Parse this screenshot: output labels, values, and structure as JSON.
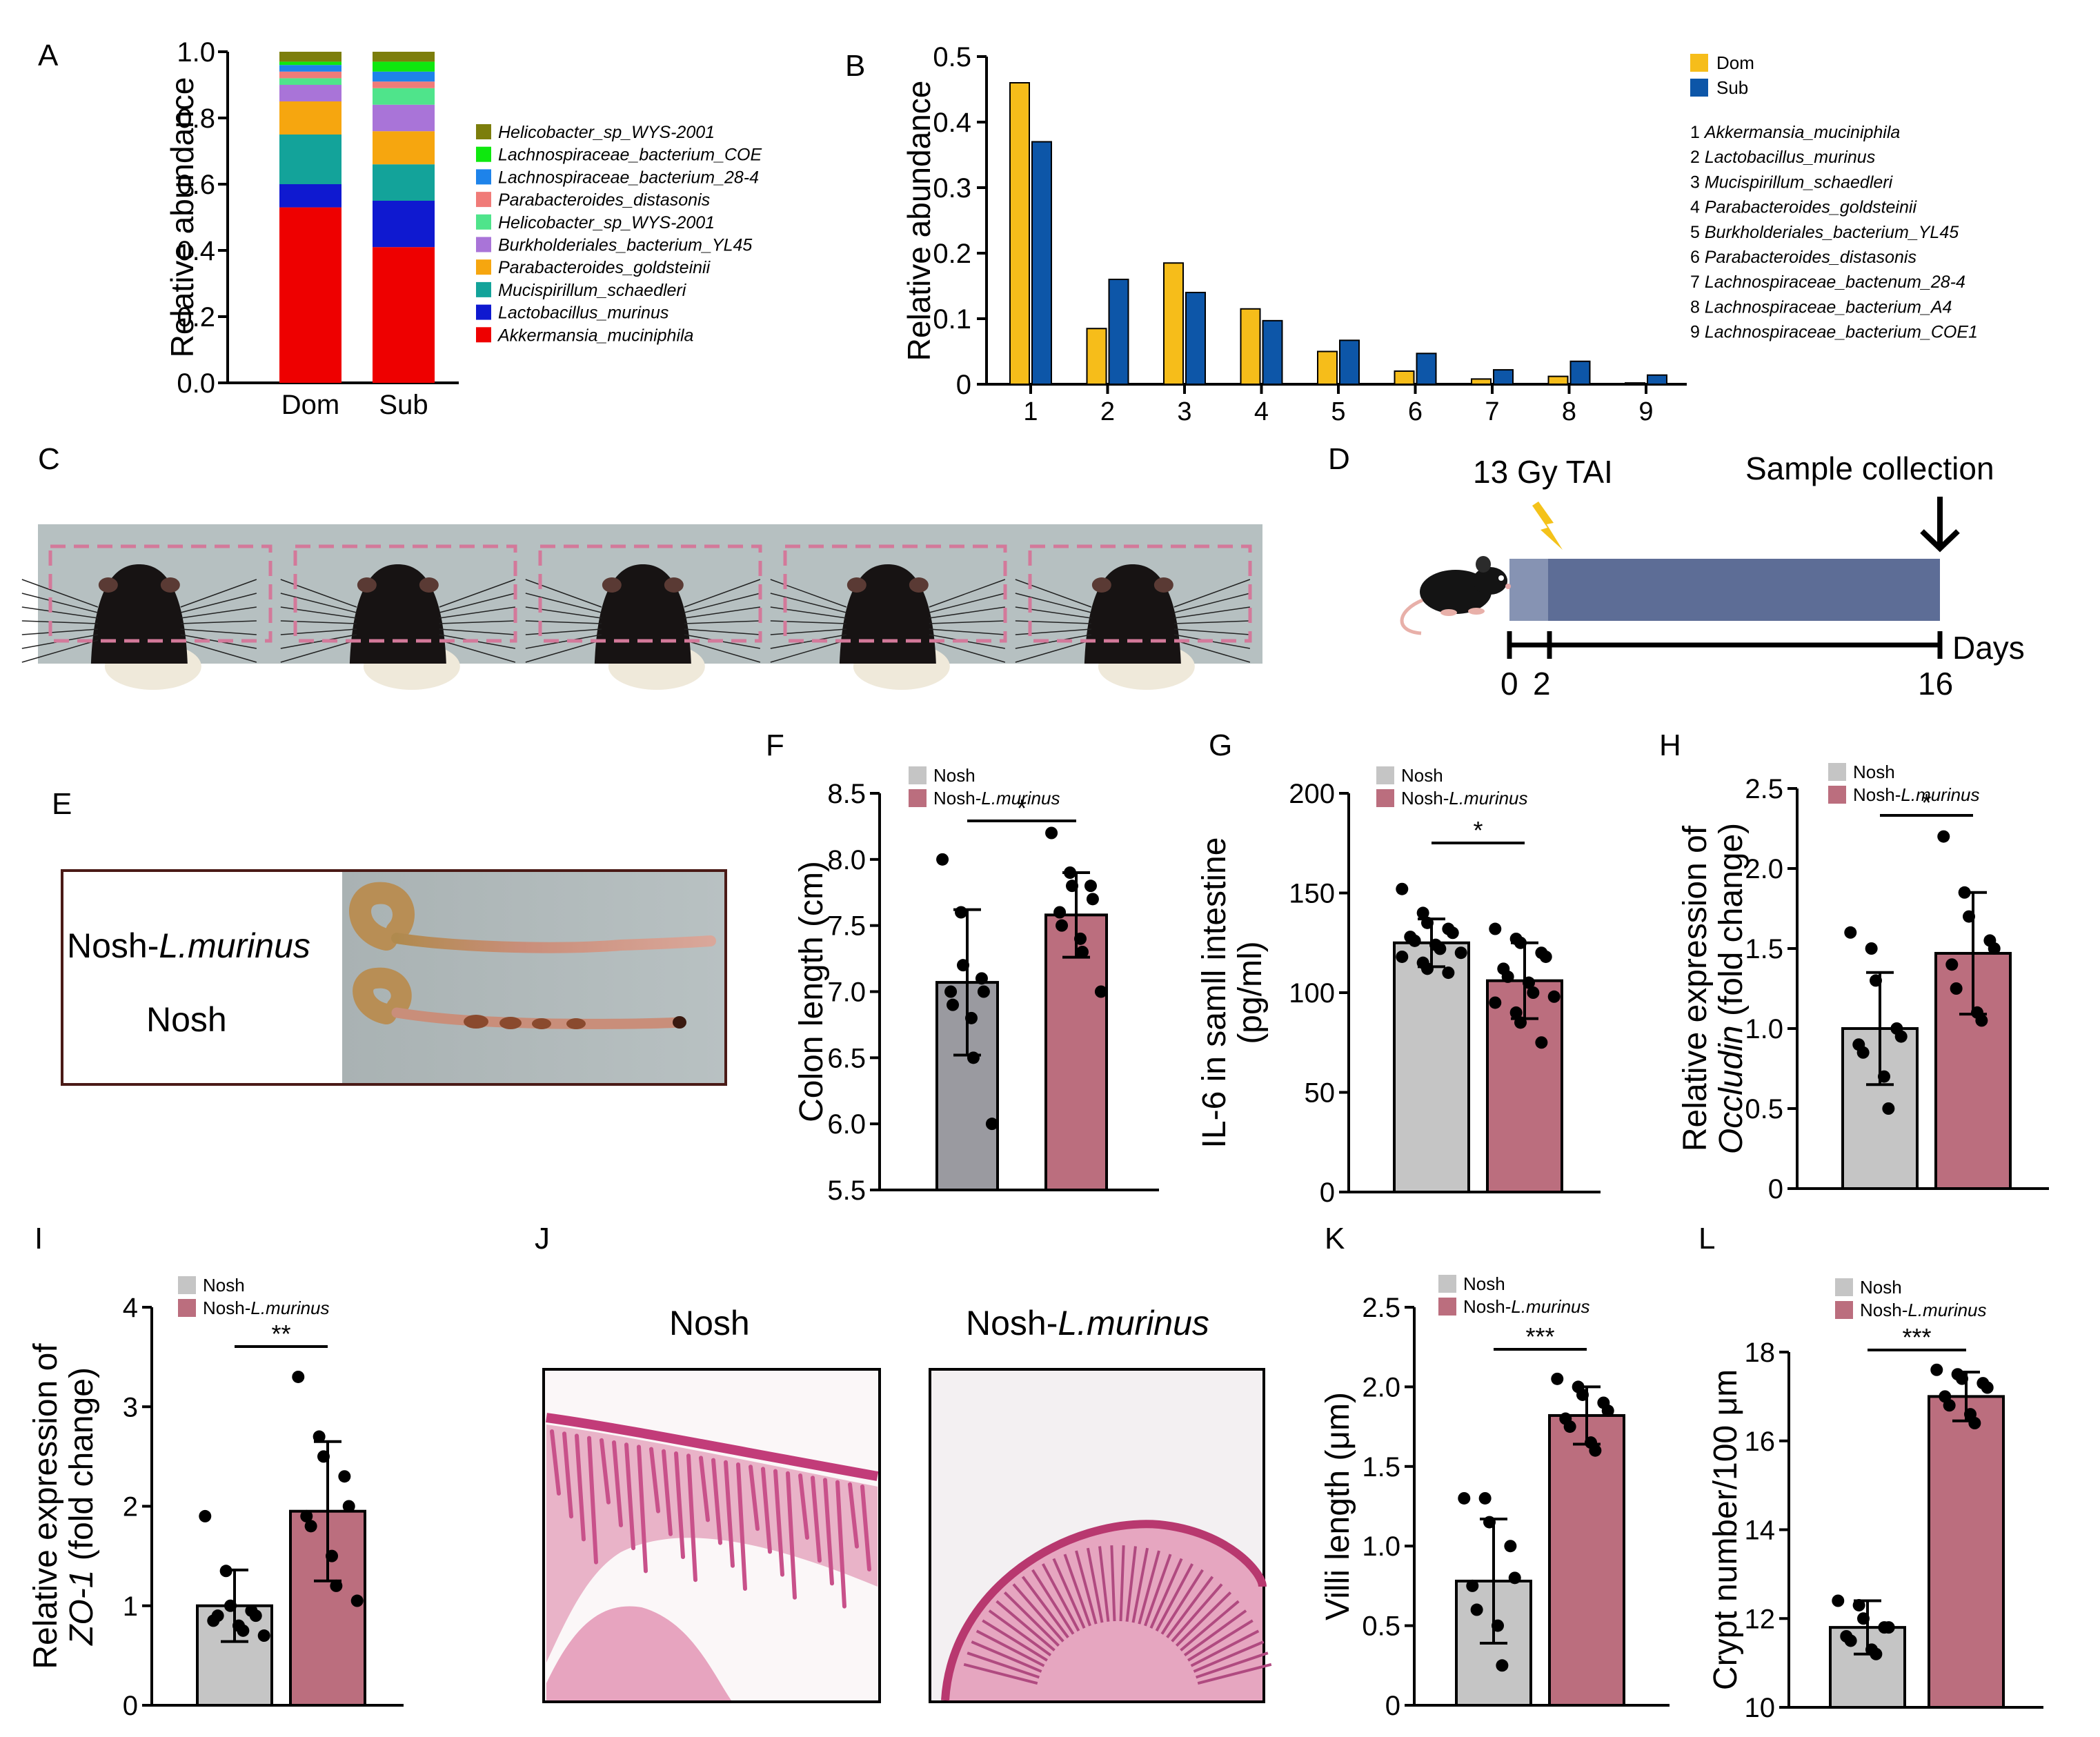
{
  "panel_letters": [
    "A",
    "B",
    "C",
    "D",
    "E",
    "F",
    "G",
    "H",
    "I",
    "J",
    "K",
    "L"
  ],
  "colors": {
    "akk": "#ee0000",
    "lacto": "#0f19d0",
    "muci": "#13a39a",
    "pgold": "#f6a60f",
    "burk": "#a974d8",
    "heli": "#4fe48b",
    "pdis": "#f07b78",
    "l28": "#1e83ea",
    "coe": "#0ee80e",
    "heli2": "#7c7e0c",
    "dom": "#f6bd1a",
    "sub": "#0d56a8",
    "nosh": "#c5c5c5",
    "nosh_lm": "#bb6e7e",
    "nosh_dark": "#9a9aa0",
    "timeline_light": "#8693b3",
    "timeline_dark": "#5d6d96",
    "bolt": "#f4c21a"
  },
  "chart_data": [
    {
      "id": "A",
      "type": "bar",
      "stacked": true,
      "ylabel": "Relative abundance",
      "ylim": [
        0,
        1.0
      ],
      "yticks": [
        "0.0",
        "0.2",
        "0.4",
        "0.6",
        "0.8",
        "1.0"
      ],
      "categories": [
        "Dom",
        "Sub"
      ],
      "series": [
        {
          "name": "Akkermansia_muciniphila",
          "color_key": "akk",
          "values": [
            0.53,
            0.41
          ]
        },
        {
          "name": "Lactobacillus_murinus",
          "color_key": "lacto",
          "values": [
            0.07,
            0.14
          ]
        },
        {
          "name": "Mucispirillum_schaedleri",
          "color_key": "muci",
          "values": [
            0.15,
            0.11
          ]
        },
        {
          "name": "Parabacteroides_goldsteinii",
          "color_key": "pgold",
          "values": [
            0.1,
            0.1
          ]
        },
        {
          "name": "Burkholderiales_bacterium_YL45",
          "color_key": "burk",
          "values": [
            0.05,
            0.08
          ]
        },
        {
          "name": "Helicobacter_sp_WYS-2001",
          "color_key": "heli",
          "values": [
            0.02,
            0.05
          ]
        },
        {
          "name": "Parabacteroides_distasonis",
          "color_key": "pdis",
          "values": [
            0.02,
            0.02
          ]
        },
        {
          "name": "Lachnospiraceae_bacterium_28-4",
          "color_key": "l28",
          "values": [
            0.02,
            0.03
          ]
        },
        {
          "name": "Lachnospiraceae_bacterium_COE1",
          "color_key": "coe",
          "values": [
            0.01,
            0.03
          ]
        },
        {
          "name": "Helicobacter_sp_WYS-2001",
          "color_key": "heli2",
          "values": [
            0.03,
            0.03
          ]
        }
      ],
      "legend_labels": [
        "Helicobacter_sp_WYS-2001",
        "Lachnospiraceae_bacterium_COE",
        "Lachnospiraceae_bacterium_28-4",
        "Parabacteroides_distasonis",
        "Helicobacter_sp_WYS-2001",
        "Burkholderiales_bacterium_YL45",
        "Parabacteroides_goldsteinii",
        "Mucispirillum_schaedleri",
        "Lactobacillus_murinus",
        "Akkermansia_muciniphila"
      ],
      "legend_color_keys": [
        "heli2",
        "coe",
        "l28",
        "pdis",
        "heli",
        "burk",
        "pgold",
        "muci",
        "lacto",
        "akk"
      ]
    },
    {
      "id": "B",
      "type": "bar",
      "ylabel": "Relative abundance",
      "ylim": [
        0,
        0.5
      ],
      "yticks": [
        "0",
        "0.1",
        "0.2",
        "0.3",
        "0.4",
        "0.5"
      ],
      "categories": [
        "1",
        "2",
        "3",
        "4",
        "5",
        "6",
        "7",
        "8",
        "9"
      ],
      "series": [
        {
          "name": "Dom",
          "color_key": "dom",
          "values": [
            0.46,
            0.085,
            0.185,
            0.115,
            0.05,
            0.02,
            0.008,
            0.012,
            0.002
          ]
        },
        {
          "name": "Sub",
          "color_key": "sub",
          "values": [
            0.37,
            0.16,
            0.14,
            0.097,
            0.067,
            0.047,
            0.022,
            0.035,
            0.014
          ]
        }
      ],
      "species_list": [
        "1 Akkermansia_muciniphila",
        "2 Lactobacillus_murinus",
        "3 Mucispirillum_schaedleri",
        "4 Parabacteroides_goldsteinii",
        "5 Burkholderiales_bacterium_YL45",
        "6 Parabacteroides_distasonis",
        "7 Lachnospiraceae_bactenum_28-4",
        "8 Lachnospiraceae_bacterium_A4",
        "9 Lachnospiraceae_bacterium_COE1"
      ]
    },
    {
      "id": "F",
      "type": "bar",
      "ylabel": "Colon length (cm)",
      "ylim": [
        5.5,
        8.5
      ],
      "yticks": [
        "5.5",
        "6.0",
        "6.5",
        "7.0",
        "7.5",
        "8.0",
        "8.5"
      ],
      "legend": [
        "Nosh",
        "Nosh-L.murinus"
      ],
      "sig": "*",
      "groups": [
        {
          "name": "Nosh",
          "color_key": "nosh_dark",
          "mean": 7.07,
          "sd": 0.55,
          "points": [
            8.0,
            7.6,
            7.2,
            7.1,
            7.0,
            7.0,
            6.9,
            6.8,
            6.5,
            6.0
          ]
        },
        {
          "name": "Nosh-L.murinus",
          "color_key": "nosh_lm",
          "mean": 7.58,
          "sd": 0.32,
          "points": [
            8.2,
            7.9,
            7.8,
            7.8,
            7.7,
            7.6,
            7.5,
            7.4,
            7.3,
            7.0
          ]
        }
      ]
    },
    {
      "id": "G",
      "type": "bar",
      "ylabel_lines": [
        "IL-6 in samll intestine",
        "(pg/ml)"
      ],
      "ylim": [
        0,
        200
      ],
      "yticks": [
        "0",
        "50",
        "100",
        "150",
        "200"
      ],
      "legend": [
        "Nosh",
        "Nosh-L.murinus"
      ],
      "sig": "*",
      "groups": [
        {
          "name": "Nosh",
          "color_key": "nosh",
          "mean": 125,
          "sd": 12,
          "points": [
            152,
            140,
            135,
            132,
            130,
            128,
            126,
            124,
            122,
            120,
            118,
            115,
            112,
            110
          ]
        },
        {
          "name": "Nosh-L.murinus",
          "color_key": "nosh_lm",
          "mean": 106,
          "sd": 19,
          "points": [
            132,
            127,
            125,
            120,
            118,
            112,
            108,
            105,
            100,
            98,
            95,
            90,
            85,
            75
          ]
        }
      ]
    },
    {
      "id": "H",
      "type": "bar",
      "ylabel_lines": [
        "Relative expression of",
        "Occludin (fold change)"
      ],
      "ylim": [
        0,
        2.5
      ],
      "yticks": [
        "0",
        "0.5",
        "1.0",
        "1.5",
        "2.0",
        "2.5"
      ],
      "legend": [
        "Nosh",
        "Nosh-L.murinus"
      ],
      "sig": "*",
      "groups": [
        {
          "name": "Nosh",
          "color_key": "nosh",
          "mean": 1.0,
          "sd": 0.35,
          "points": [
            1.6,
            1.5,
            1.3,
            1.0,
            0.95,
            0.9,
            0.85,
            0.7,
            0.5
          ]
        },
        {
          "name": "Nosh-L.murinus",
          "color_key": "nosh_lm",
          "mean": 1.47,
          "sd": 0.38,
          "points": [
            2.2,
            1.85,
            1.7,
            1.55,
            1.5,
            1.4,
            1.25,
            1.1,
            1.05
          ]
        }
      ]
    },
    {
      "id": "I",
      "type": "bar",
      "ylabel_lines": [
        "Relative expression of",
        "ZO-1 (fold change)"
      ],
      "ylim": [
        0,
        4
      ],
      "yticks": [
        "0",
        "1",
        "2",
        "3",
        "4"
      ],
      "legend": [
        "Nosh",
        "Nosh-L.murinus"
      ],
      "sig": "**",
      "groups": [
        {
          "name": "Nosh",
          "color_key": "nosh",
          "mean": 1.0,
          "sd": 0.36,
          "points": [
            1.9,
            1.35,
            1.0,
            0.95,
            0.9,
            0.85,
            0.9,
            0.8,
            0.75,
            0.7
          ]
        },
        {
          "name": "Nosh-L.murinus",
          "color_key": "nosh_lm",
          "mean": 1.95,
          "sd": 0.7,
          "points": [
            3.3,
            2.7,
            2.5,
            2.3,
            2.0,
            1.9,
            1.8,
            1.5,
            1.2,
            1.05
          ]
        }
      ]
    },
    {
      "id": "K",
      "type": "bar",
      "ylabel": "Villi length (μm)",
      "ylim": [
        0,
        2.5
      ],
      "yticks": [
        "0",
        "0.5",
        "1.0",
        "1.5",
        "2.0",
        "2.5"
      ],
      "legend": [
        "Nosh",
        "Nosh-L.murinus"
      ],
      "sig": "***",
      "groups": [
        {
          "name": "Nosh",
          "color_key": "nosh",
          "mean": 0.78,
          "sd": 0.39,
          "points": [
            1.3,
            1.3,
            1.15,
            1.0,
            0.8,
            0.75,
            0.6,
            0.5,
            0.25
          ]
        },
        {
          "name": "Nosh-L.murinus",
          "color_key": "nosh_lm",
          "mean": 1.82,
          "sd": 0.18,
          "points": [
            2.05,
            2.0,
            1.95,
            1.9,
            1.85,
            1.8,
            1.75,
            1.65,
            1.6
          ]
        }
      ]
    },
    {
      "id": "L",
      "type": "bar",
      "ylabel": "Crypt number/100 μm",
      "ylim": [
        10,
        18
      ],
      "yticks": [
        "10",
        "12",
        "14",
        "16",
        "18"
      ],
      "legend": [
        "Nosh",
        "Nosh-L.murinus"
      ],
      "sig": "***",
      "groups": [
        {
          "name": "Nosh",
          "color_key": "nosh",
          "mean": 11.8,
          "sd": 0.6,
          "points": [
            12.4,
            12.3,
            12.0,
            11.8,
            11.8,
            11.6,
            11.5,
            11.3,
            11.2
          ]
        },
        {
          "name": "Nosh-L.murinus",
          "color_key": "nosh_lm",
          "mean": 17.0,
          "sd": 0.55,
          "points": [
            17.6,
            17.5,
            17.4,
            17.3,
            17.2,
            17.0,
            16.8,
            16.6,
            16.4
          ]
        }
      ]
    }
  ],
  "panel_D": {
    "treatment": "13 Gy TAI",
    "collection": "Sample collection",
    "unit": "Days",
    "tick_labels": [
      "0",
      "2",
      "16"
    ]
  },
  "panel_E": {
    "label_top_prefix": "Nosh-",
    "label_top_italic": "L.murinus",
    "label_bottom": "Nosh"
  },
  "panel_J": {
    "title_left": "Nosh",
    "title_right_prefix": "Nosh-",
    "title_right_italic": "L.murinus"
  }
}
